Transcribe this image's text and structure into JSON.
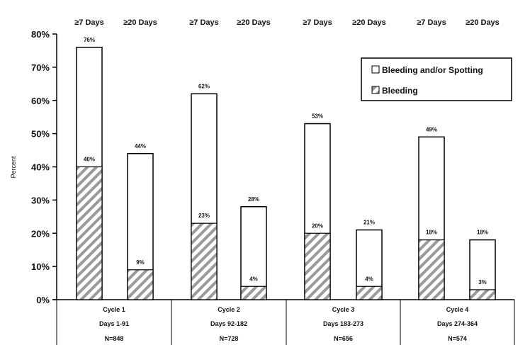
{
  "chart_data": {
    "type": "bar",
    "ylabel": "Percent",
    "ylim": [
      0,
      80
    ],
    "yticks": [
      "0%",
      "10%",
      "20%",
      "30%",
      "40%",
      "50%",
      "60%",
      "70%",
      "80%"
    ],
    "grid": false,
    "legend_position": "top-right",
    "bar_labels": [
      "≥7 Days",
      "≥20 Days",
      "≥7 Days",
      "≥20 Days",
      "≥7 Days",
      "≥20 Days",
      "≥7 Days",
      "≥20 Days"
    ],
    "groups": [
      {
        "name": "Cycle 1",
        "days": "Days 1-91",
        "n": "N=848"
      },
      {
        "name": "Cycle 2",
        "days": "Days 92-182",
        "n": "N=728"
      },
      {
        "name": "Cycle 3",
        "days": "Days 183-273",
        "n": "N=656"
      },
      {
        "name": "Cycle 4",
        "days": "Days 274-364",
        "n": "N=574"
      }
    ],
    "series": [
      {
        "name": "Bleeding and/or Spotting",
        "fill": "#ffffff",
        "values": [
          76,
          44,
          62,
          28,
          53,
          21,
          49,
          18
        ],
        "labels": [
          "76%",
          "44%",
          "62%",
          "28%",
          "53%",
          "21%",
          "49%",
          "18%"
        ]
      },
      {
        "name": "Bleeding",
        "fill": "hatch",
        "values": [
          40,
          9,
          23,
          4,
          20,
          4,
          18,
          3
        ],
        "labels": [
          "40%",
          "9%",
          "23%",
          "4%",
          "20%",
          "4%",
          "18%",
          "3%"
        ]
      }
    ]
  }
}
